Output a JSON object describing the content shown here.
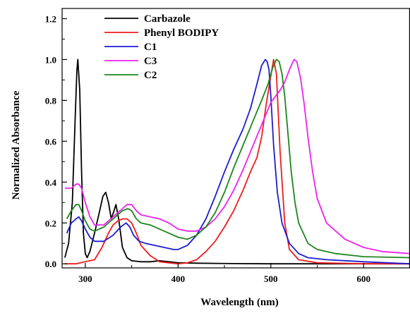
{
  "chart_data": {
    "type": "line",
    "title": "",
    "xlabel": "Wavelength (nm)",
    "ylabel": "Normalized Absorbance",
    "xlim": [
      275,
      650
    ],
    "ylim": [
      -0.02,
      1.25
    ],
    "x_ticks": [
      300,
      400,
      500,
      600
    ],
    "y_ticks": [
      0.0,
      0.2,
      0.4,
      0.6,
      0.8,
      1.0,
      1.2
    ],
    "x_tick_labels": [
      "300",
      "400",
      "500",
      "600"
    ],
    "y_tick_labels": [
      "0.0",
      "0.2",
      "0.4",
      "0.6",
      "0.8",
      "1.0",
      "1.2"
    ],
    "grid": false,
    "legend_position": "top-left",
    "series": [
      {
        "name": "Carbazole",
        "color": "#000000",
        "x": [
          278,
          282,
          286,
          289,
          291,
          292,
          294,
          296,
          298,
          300,
          302,
          305,
          310,
          315,
          319,
          322,
          325,
          328,
          331,
          333,
          336,
          340,
          345,
          350,
          360,
          370,
          380,
          390,
          400,
          420,
          440,
          460,
          500,
          550,
          600,
          650
        ],
        "y": [
          0.03,
          0.1,
          0.3,
          0.7,
          0.95,
          1.0,
          0.85,
          0.45,
          0.15,
          0.05,
          0.03,
          0.06,
          0.15,
          0.25,
          0.33,
          0.35,
          0.3,
          0.22,
          0.26,
          0.29,
          0.22,
          0.08,
          0.03,
          0.015,
          0.01,
          0.01,
          0.015,
          0.01,
          0.005,
          0.003,
          0.002,
          0.001,
          0.0,
          0.0,
          0.0,
          0.0
        ]
      },
      {
        "name": "Phenyl BODIPY",
        "color": "#ee1c1c",
        "x": [
          278,
          290,
          300,
          310,
          318,
          325,
          330,
          335,
          340,
          345,
          350,
          355,
          360,
          370,
          380,
          390,
          400,
          410,
          420,
          430,
          440,
          450,
          460,
          470,
          478,
          485,
          490,
          495,
          500,
          503,
          506,
          510,
          515,
          520,
          530,
          550,
          600,
          650
        ],
        "y": [
          0.0,
          0.0,
          0.01,
          0.02,
          0.08,
          0.15,
          0.19,
          0.21,
          0.22,
          0.22,
          0.2,
          0.15,
          0.09,
          0.04,
          0.01,
          0.005,
          0.0,
          0.005,
          0.02,
          0.06,
          0.11,
          0.18,
          0.26,
          0.36,
          0.45,
          0.52,
          0.62,
          0.78,
          0.92,
          1.0,
          0.93,
          0.55,
          0.2,
          0.07,
          0.02,
          0.005,
          0.0,
          0.0
        ]
      },
      {
        "name": "C1",
        "color": "#1c1cd0",
        "x": [
          280,
          285,
          290,
          293,
          296,
          300,
          305,
          310,
          320,
          330,
          338,
          344,
          348,
          352,
          358,
          365,
          375,
          385,
          395,
          400,
          410,
          420,
          430,
          440,
          450,
          460,
          470,
          478,
          485,
          490,
          494,
          496,
          498,
          500,
          503,
          507,
          512,
          520,
          530,
          540,
          560,
          600,
          650
        ],
        "y": [
          0.15,
          0.2,
          0.22,
          0.23,
          0.21,
          0.17,
          0.13,
          0.11,
          0.11,
          0.14,
          0.18,
          0.2,
          0.18,
          0.14,
          0.11,
          0.1,
          0.09,
          0.08,
          0.07,
          0.07,
          0.09,
          0.14,
          0.22,
          0.33,
          0.45,
          0.56,
          0.66,
          0.76,
          0.88,
          0.97,
          1.0,
          0.99,
          0.95,
          0.82,
          0.58,
          0.35,
          0.2,
          0.1,
          0.05,
          0.03,
          0.02,
          0.01,
          0.0
        ]
      },
      {
        "name": "C3",
        "color": "#ee22ee",
        "x": [
          278,
          285,
          290,
          293,
          296,
          300,
          305,
          310,
          320,
          330,
          340,
          345,
          350,
          355,
          360,
          370,
          380,
          390,
          400,
          410,
          420,
          430,
          440,
          450,
          460,
          470,
          480,
          490,
          500,
          505,
          510,
          515,
          520,
          525,
          528,
          532,
          536,
          540,
          545,
          550,
          560,
          580,
          600,
          620,
          650
        ],
        "y": [
          0.37,
          0.37,
          0.39,
          0.39,
          0.37,
          0.3,
          0.23,
          0.19,
          0.19,
          0.23,
          0.27,
          0.29,
          0.29,
          0.26,
          0.24,
          0.23,
          0.22,
          0.2,
          0.17,
          0.16,
          0.16,
          0.18,
          0.22,
          0.28,
          0.36,
          0.46,
          0.57,
          0.68,
          0.79,
          0.82,
          0.85,
          0.89,
          0.95,
          1.0,
          0.99,
          0.91,
          0.78,
          0.62,
          0.45,
          0.32,
          0.2,
          0.12,
          0.08,
          0.06,
          0.05
        ]
      },
      {
        "name": "C2",
        "color": "#1c861c",
        "x": [
          280,
          285,
          290,
          293,
          296,
          300,
          305,
          310,
          320,
          330,
          340,
          346,
          350,
          355,
          360,
          370,
          380,
          390,
          400,
          410,
          420,
          430,
          440,
          450,
          460,
          470,
          480,
          490,
          497,
          502,
          506,
          509,
          512,
          515,
          518,
          522,
          526,
          530,
          540,
          550,
          570,
          600,
          650
        ],
        "y": [
          0.22,
          0.26,
          0.29,
          0.29,
          0.26,
          0.21,
          0.17,
          0.16,
          0.18,
          0.22,
          0.26,
          0.27,
          0.26,
          0.22,
          0.2,
          0.19,
          0.17,
          0.15,
          0.13,
          0.12,
          0.14,
          0.18,
          0.25,
          0.35,
          0.47,
          0.58,
          0.69,
          0.8,
          0.88,
          0.96,
          1.0,
          0.99,
          0.93,
          0.82,
          0.66,
          0.45,
          0.3,
          0.2,
          0.1,
          0.07,
          0.05,
          0.035,
          0.03
        ]
      }
    ]
  }
}
